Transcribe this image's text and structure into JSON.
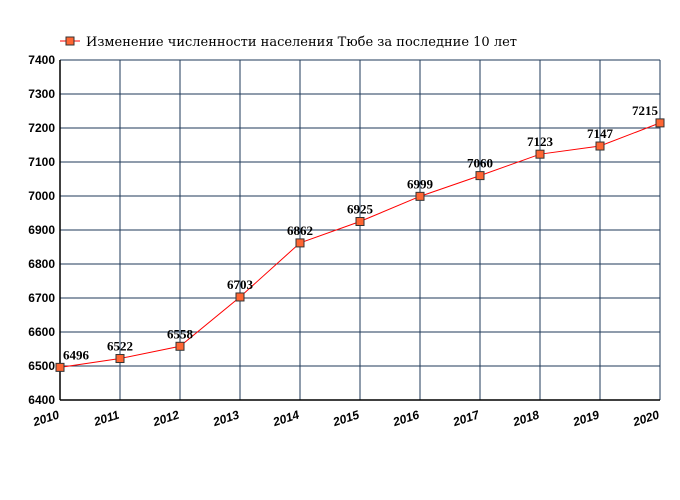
{
  "chart_data": {
    "type": "line",
    "title": "",
    "xlabel": "",
    "ylabel": "",
    "x": [
      "2010",
      "2011",
      "2012",
      "2013",
      "2014",
      "2015",
      "2016",
      "2017",
      "2018",
      "2019",
      "2020"
    ],
    "series": [
      {
        "name": "Изменение численности населения Тюбе за последние 10 лет",
        "values": [
          6496,
          6522,
          6558,
          6703,
          6862,
          6925,
          6999,
          7060,
          7123,
          7147,
          7215
        ],
        "labels": [
          "6496",
          "6522",
          "6558",
          "6703",
          "6862",
          "6925",
          "6999",
          "7060",
          "7123",
          "7147",
          "7215"
        ]
      }
    ],
    "yticks": [
      "6400",
      "6500",
      "6600",
      "6700",
      "6800",
      "6900",
      "7000",
      "7100",
      "7200",
      "7300",
      "7400"
    ],
    "ylim": [
      6400,
      7400
    ],
    "grid": true,
    "legend_position": "top-left",
    "colors": {
      "line": "#ff0000",
      "marker_fill": "#ff6633",
      "marker_stroke": "#333333",
      "grid": "#1f3a5a",
      "axis": "#000000"
    }
  }
}
